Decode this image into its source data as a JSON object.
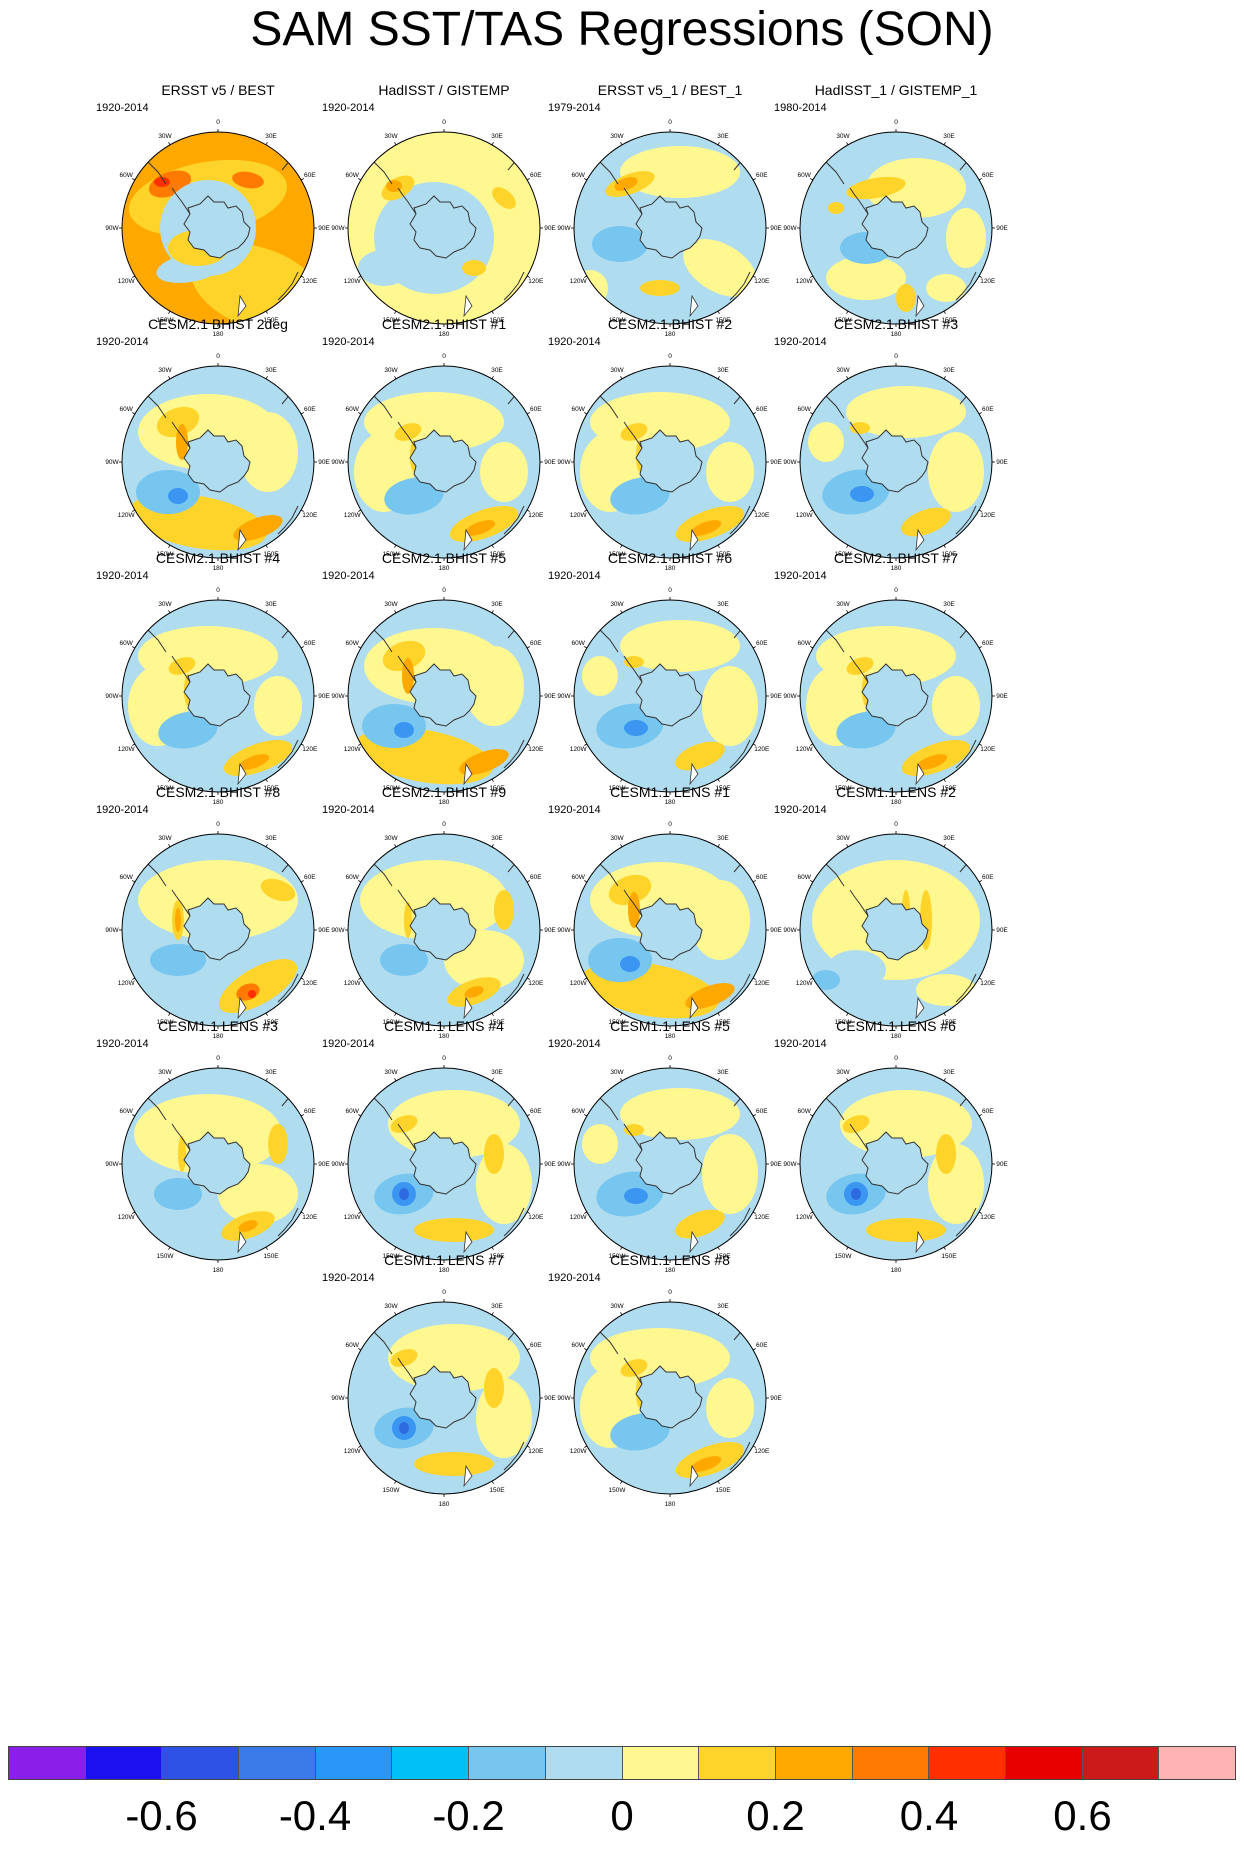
{
  "title": "SAM SST/TAS Regressions (SON)",
  "lon_labels": [
    "0",
    "30E",
    "60E",
    "90E",
    "120E",
    "150E",
    "180",
    "150W",
    "120W",
    "90W",
    "60W",
    "30W"
  ],
  "panels": [
    {
      "title": "ERSST v5 / BEST",
      "years": "1920-2014",
      "pattern": "warm_full"
    },
    {
      "title": "HadISST / GISTEMP",
      "years": "1920-2014",
      "pattern": "yellow_obs"
    },
    {
      "title": "ERSST v5_1 / BEST_1",
      "years": "1979-2014",
      "pattern": "mixed_obs"
    },
    {
      "title": "HadISST_1 / GISTEMP_1",
      "years": "1980-2014",
      "pattern": "speckle_obs"
    },
    {
      "title": "CESM2.1 BHIST 2deg",
      "years": "1920-2014",
      "pattern": "model_a"
    },
    {
      "title": "CESM2.1 BHIST #1",
      "years": "1920-2014",
      "pattern": "model_b"
    },
    {
      "title": "CESM2.1 BHIST #2",
      "years": "1920-2014",
      "pattern": "model_b"
    },
    {
      "title": "CESM2.1 BHIST #3",
      "years": "1920-2014",
      "pattern": "model_c"
    },
    {
      "title": "CESM2.1 BHIST #4",
      "years": "1920-2014",
      "pattern": "model_b"
    },
    {
      "title": "CESM2.1 BHIST #5",
      "years": "1920-2014",
      "pattern": "model_a"
    },
    {
      "title": "CESM2.1 BHIST #6",
      "years": "1920-2014",
      "pattern": "model_c"
    },
    {
      "title": "CESM2.1 BHIST #7",
      "years": "1920-2014",
      "pattern": "model_b"
    },
    {
      "title": "CESM2.1 BHIST #8",
      "years": "1920-2014",
      "pattern": "model_d"
    },
    {
      "title": "CESM2.1 BHIST #9",
      "years": "1920-2014",
      "pattern": "model_e"
    },
    {
      "title": "CESM1.1 LENS #1",
      "years": "1920-2014",
      "pattern": "model_a"
    },
    {
      "title": "CESM1.1 LENS #2",
      "years": "1920-2014",
      "pattern": "model_f"
    },
    {
      "title": "CESM1.1 LENS #3",
      "years": "1920-2014",
      "pattern": "model_e"
    },
    {
      "title": "CESM1.1 LENS #4",
      "years": "1920-2014",
      "pattern": "model_g"
    },
    {
      "title": "CESM1.1 LENS #5",
      "years": "1920-2014",
      "pattern": "model_c"
    },
    {
      "title": "CESM1.1 LENS #6",
      "years": "1920-2014",
      "pattern": "model_g"
    },
    {
      "title": "CESM1.1 LENS #7",
      "years": "1920-2014",
      "pattern": "model_g"
    },
    {
      "title": "CESM1.1 LENS #8",
      "years": "1920-2014",
      "pattern": "model_b"
    }
  ],
  "colorbar": {
    "colors": [
      "#8a20e8",
      "#1a10f0",
      "#2e52e6",
      "#3a7ae8",
      "#2a96f8",
      "#00c0f8",
      "#76c6f0",
      "#b0dcf0",
      "#fff890",
      "#ffd42a",
      "#ffa800",
      "#ff7a00",
      "#ff3000",
      "#e80000",
      "#cc1a1a",
      "#ffb4b4"
    ],
    "ticks": [
      "-0.6",
      "-0.4",
      "-0.2",
      "0",
      "0.2",
      "0.4",
      "0.6"
    ]
  }
}
